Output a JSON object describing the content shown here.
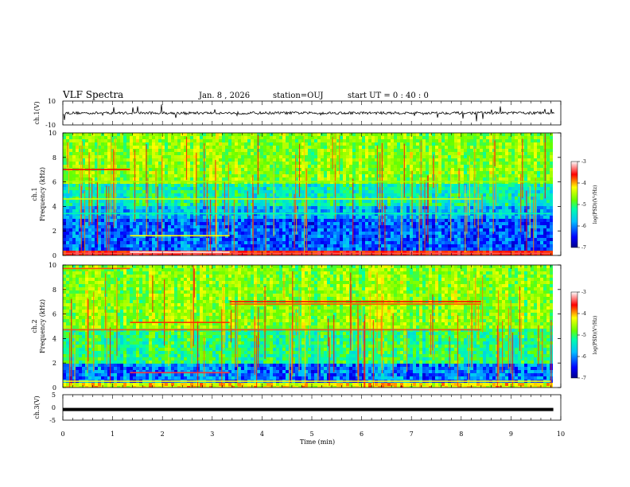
{
  "header": {
    "title": "VLF Spectra",
    "date": "Jan. 8 , 2026",
    "station": "station=OUJ",
    "start_ut": "start UT =  0 : 40 : 0"
  },
  "chart_data": [
    {
      "type": "line",
      "panel": "ch1-waveform",
      "ylabel": "ch.1(V)",
      "ylim": [
        -10,
        10
      ],
      "ytick_labels": [
        "10",
        "-10"
      ],
      "xlim": [
        0,
        10
      ],
      "baseline": 0
    },
    {
      "type": "heatmap",
      "panel": "ch1-spectrogram",
      "ylabel": "ch.1\nFrequency (kHz)",
      "ylim": [
        0,
        10
      ],
      "ytick_labels": [
        "0",
        "2",
        "4",
        "6",
        "8",
        "10"
      ],
      "xlim": [
        0,
        10
      ],
      "data_end_min": 9.8,
      "colorbar": {
        "label": "log(PSD)(V²/Hz)",
        "range": [
          -7,
          -3
        ],
        "tick_labels": [
          "-3",
          "-4",
          "-5",
          "-6",
          "-7"
        ]
      }
    },
    {
      "type": "heatmap",
      "panel": "ch2-spectrogram",
      "ylabel": "ch.2\nFrequency (kHz)",
      "ylim": [
        0,
        10
      ],
      "ytick_labels": [
        "0",
        "2",
        "4",
        "6",
        "8",
        "10"
      ],
      "xlim": [
        0,
        10
      ],
      "data_end_min": 9.8,
      "colorbar": {
        "label": "log(PSD)(V²/Hz)",
        "range": [
          -7,
          -3
        ],
        "tick_labels": [
          "-3",
          "-4",
          "-5",
          "-6",
          "-7"
        ]
      }
    },
    {
      "type": "line",
      "panel": "ch3-waveform",
      "ylabel": "ch.3(V)",
      "ylim": [
        -5,
        5
      ],
      "ytick_labels": [
        "5",
        "0",
        "-5"
      ],
      "xlim": [
        0,
        10
      ],
      "constant_value": -0.8,
      "xlabel": "Time (min)",
      "xtick_labels": [
        "0",
        "1",
        "2",
        "3",
        "4",
        "5",
        "6",
        "7",
        "8",
        "9",
        "10"
      ]
    }
  ],
  "colors": {
    "spectrum_low": "#00008b",
    "spectrum_high": "#8b0000",
    "trace": "#000000"
  }
}
